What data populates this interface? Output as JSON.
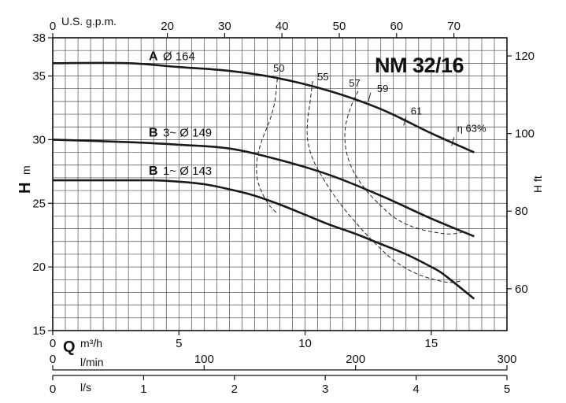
{
  "chart_data": {
    "type": "line",
    "title": "NM 32/16",
    "left_axis": {
      "label_main": "H",
      "label_unit": "m",
      "ylim": [
        15,
        38
      ],
      "ticks": [
        "15",
        "20",
        "25",
        "30",
        "35",
        "38"
      ]
    },
    "right_axis": {
      "label": "H ft",
      "ticks": [
        "60",
        "80",
        "100",
        "120"
      ]
    },
    "top_axis": {
      "label": "U.S. g.p.m.",
      "ticks": [
        "0",
        "20",
        "30",
        "40",
        "50",
        "60",
        "70"
      ]
    },
    "x_axis_m3h": {
      "label_main": "Q",
      "label_unit": "m³/h",
      "xlim": [
        0,
        18
      ],
      "ticks": [
        "0",
        "5",
        "10",
        "15"
      ]
    },
    "x_axis_lmin": {
      "label": "l/min",
      "ticks": [
        "0",
        "100",
        "200",
        "300"
      ]
    },
    "x_axis_ls": {
      "label": "l/s",
      "ticks": [
        "0",
        "1",
        "2",
        "3",
        "4",
        "5"
      ]
    },
    "grid": true,
    "series": [
      {
        "key": "A",
        "name": "Ø 164",
        "x": [
          0,
          3,
          5,
          7,
          9,
          11,
          13,
          15,
          16.7
        ],
        "y": [
          36.0,
          36.0,
          35.7,
          35.4,
          34.8,
          33.8,
          32.4,
          30.5,
          29.0
        ]
      },
      {
        "key": "B",
        "name": "3~ Ø 149",
        "x": [
          0,
          3,
          5,
          7,
          9,
          11,
          13,
          15,
          16.7
        ],
        "y": [
          30.0,
          29.8,
          29.6,
          29.3,
          28.4,
          27.2,
          25.6,
          23.8,
          22.4
        ]
      },
      {
        "key": "B",
        "name": "1~ Ø 143",
        "x": [
          0,
          2,
          4,
          5,
          6,
          7,
          8,
          9,
          10,
          11,
          12,
          13,
          14,
          15,
          15.5,
          16.7
        ],
        "y": [
          26.8,
          26.8,
          26.8,
          26.7,
          26.5,
          26.1,
          25.6,
          24.9,
          24.1,
          23.3,
          22.6,
          21.8,
          21.0,
          20.0,
          19.4,
          17.5
        ]
      }
    ],
    "efficiency_curves": [
      {
        "label": "50",
        "x": [
          8.9,
          8.8,
          8.6,
          8.3,
          8.1,
          8.1,
          8.3,
          8.6,
          8.9
        ],
        "y": [
          34.8,
          33.0,
          31.5,
          30.0,
          28.5,
          27.0,
          25.8,
          24.8,
          24.2
        ]
      },
      {
        "label": "55",
        "x": [
          10.3,
          10.2,
          10.1,
          10.1,
          10.3,
          10.7,
          11.3,
          12.0,
          12.8,
          13.6,
          14.5,
          15.6,
          16.2
        ],
        "y": [
          34.6,
          33.0,
          31.5,
          30.0,
          28.5,
          27.0,
          25.2,
          23.5,
          21.8,
          20.4,
          19.4,
          18.8,
          18.9
        ]
      },
      {
        "label": "57",
        "x": [
          12.1,
          11.8,
          11.6,
          11.6,
          11.8,
          12.2,
          12.8,
          13.6,
          14.5,
          15.6,
          16.2
        ],
        "y": [
          33.8,
          32.5,
          31.0,
          29.5,
          28.0,
          26.6,
          25.2,
          23.8,
          23.0,
          22.6,
          22.7
        ]
      },
      {
        "label": "59",
        "x": [
          12.6
        ],
        "y": [
          33.5
        ]
      },
      {
        "label": "61",
        "x": [
          14.0
        ],
        "y": [
          31.6
        ]
      },
      {
        "label": "η 63%",
        "x": [
          15.9
        ],
        "y": [
          30.0
        ]
      }
    ]
  }
}
